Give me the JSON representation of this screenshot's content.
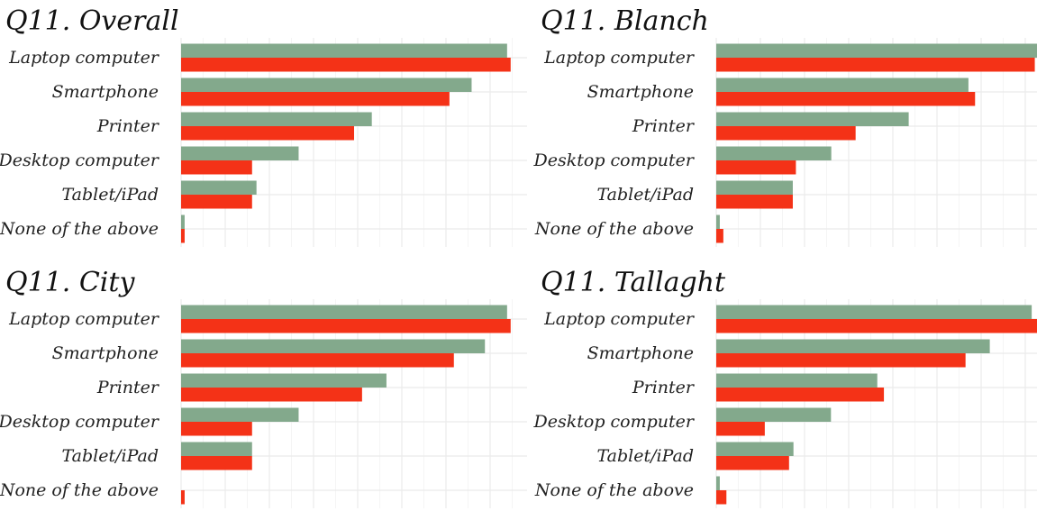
{
  "colors": {
    "series_a": "#83a98c",
    "series_b": "#f43217"
  },
  "chart_data": [
    {
      "type": "bar",
      "orientation": "horizontal",
      "title": "Q11.    Overall",
      "categories": [
        "Laptop computer",
        "Smartphone",
        "Printer",
        "Desktop computer",
        "Tablet/iPad",
        "None of the above"
      ],
      "series": [
        {
          "values": [
            73.5,
            65.5,
            43.0,
            26.5,
            17.0,
            0.8
          ]
        },
        {
          "values": [
            74.3,
            60.5,
            39.0,
            16.0,
            16.0,
            0.8
          ]
        }
      ],
      "xlim": [
        0,
        78
      ],
      "grid": true
    },
    {
      "type": "bar",
      "orientation": "horizontal",
      "title": "Q11.    Blanch",
      "categories": [
        "Laptop computer",
        "Smartphone",
        "Printer",
        "Desktop computer",
        "Tablet/iPad",
        "None of the above"
      ],
      "series": [
        {
          "values": [
            72.5,
            57.0,
            43.5,
            26.0,
            17.3,
            0.8
          ]
        },
        {
          "values": [
            72.0,
            58.5,
            31.5,
            18.0,
            17.3,
            1.6
          ]
        }
      ],
      "xlim": [
        0,
        72.5
      ],
      "grid": true
    },
    {
      "type": "bar",
      "orientation": "horizontal",
      "title": "Q11.    City",
      "categories": [
        "Laptop computer",
        "Smartphone",
        "Printer",
        "Desktop computer",
        "Tablet/iPad",
        "None of the above"
      ],
      "series": [
        {
          "values": [
            73.5,
            68.5,
            46.3,
            26.5,
            16.0,
            0.0
          ]
        },
        {
          "values": [
            74.3,
            61.5,
            40.8,
            16.0,
            16.0,
            0.8
          ]
        }
      ],
      "xlim": [
        0,
        78
      ],
      "grid": true
    },
    {
      "type": "bar",
      "orientation": "horizontal",
      "title": "Q11.    Tallaght",
      "categories": [
        "Laptop computer",
        "Smartphone",
        "Printer",
        "Desktop computer",
        "Tablet/iPad",
        "None of the above"
      ],
      "series": [
        {
          "values": [
            71.5,
            62.0,
            36.5,
            26.0,
            17.5,
            0.8
          ]
        },
        {
          "values": [
            72.7,
            56.5,
            38.0,
            11.0,
            16.5,
            2.3
          ]
        }
      ],
      "xlim": [
        0,
        72.7
      ],
      "grid": true
    }
  ]
}
